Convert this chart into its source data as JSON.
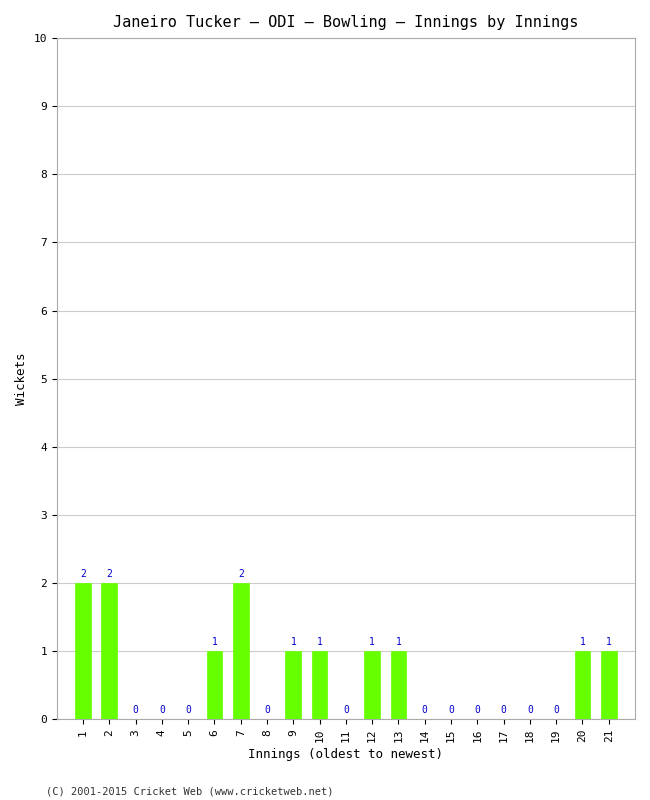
{
  "title": "Janeiro Tucker – ODI – Bowling – Innings by Innings",
  "xlabel": "Innings (oldest to newest)",
  "ylabel": "Wickets",
  "footer": "(C) 2001-2015 Cricket Web (www.cricketweb.net)",
  "ylim": [
    0,
    10
  ],
  "yticks": [
    0,
    1,
    2,
    3,
    4,
    5,
    6,
    7,
    8,
    9,
    10
  ],
  "innings": [
    1,
    2,
    3,
    4,
    5,
    6,
    7,
    8,
    9,
    10,
    11,
    12,
    13,
    14,
    15,
    16,
    17,
    18,
    19,
    20,
    21
  ],
  "wickets": [
    2,
    2,
    0,
    0,
    0,
    1,
    2,
    0,
    1,
    1,
    0,
    1,
    1,
    0,
    0,
    0,
    0,
    0,
    0,
    1,
    1
  ],
  "bar_color": "#66ff00",
  "bar_edge_color": "#66ff00",
  "label_color": "#0000cc",
  "background_color": "#ffffff",
  "grid_color": "#cccccc",
  "title_fontsize": 11,
  "axis_fontsize": 9,
  "label_fontsize": 7,
  "tick_fontsize": 8,
  "footer_fontsize": 7.5
}
